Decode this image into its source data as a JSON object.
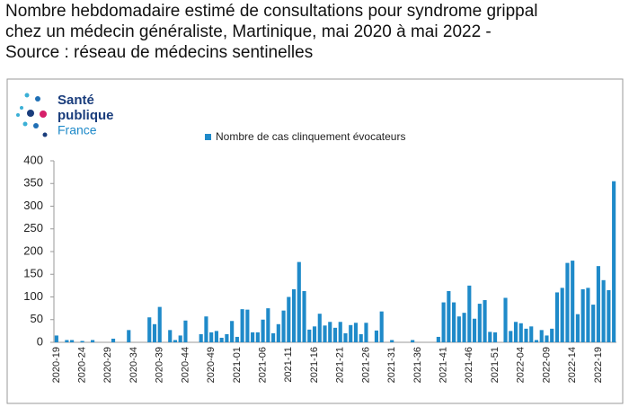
{
  "chart_data": {
    "type": "bar",
    "title": [
      "Nombre hebdomadaire estimé de consultations pour syndrome grippal",
      "chez un médecin généraliste, Martinique, mai 2020 à mai 2022 -",
      "Source : réseau de médecins sentinelles"
    ],
    "logo": [
      "Santé",
      "publique",
      "France"
    ],
    "categories": [
      "2020-19",
      null,
      null,
      null,
      null,
      "2020-24",
      null,
      null,
      null,
      null,
      "2020-29",
      null,
      null,
      null,
      null,
      "2020-34",
      null,
      null,
      null,
      null,
      "2020-39",
      null,
      null,
      null,
      null,
      "2020-44",
      null,
      null,
      null,
      null,
      "2020-49",
      null,
      null,
      null,
      null,
      "2021-01",
      null,
      null,
      null,
      null,
      "2021-06",
      null,
      null,
      null,
      null,
      "2021-11",
      null,
      null,
      null,
      null,
      "2021-16",
      null,
      null,
      null,
      null,
      "2021-21",
      null,
      null,
      null,
      null,
      "2021-26",
      null,
      null,
      null,
      null,
      "2021-31",
      null,
      null,
      null,
      null,
      "2021-36",
      null,
      null,
      null,
      null,
      "2021-41",
      null,
      null,
      null,
      null,
      "2021-46",
      null,
      null,
      null,
      null,
      "2021-51",
      null,
      null,
      null,
      null,
      "2022-04",
      null,
      null,
      null,
      null,
      "2022-09",
      null,
      null,
      null,
      null,
      "2022-14",
      null,
      null,
      null,
      null,
      "2022-19",
      null,
      null,
      null
    ],
    "series": [
      {
        "name": "Nombre de cas clinquement évocateurs",
        "color": "#1f8ac9",
        "values": [
          15,
          0,
          5,
          5,
          0,
          3,
          0,
          5,
          0,
          0,
          0,
          8,
          0,
          0,
          27,
          0,
          0,
          0,
          55,
          40,
          78,
          0,
          27,
          5,
          15,
          48,
          0,
          0,
          18,
          57,
          22,
          25,
          10,
          18,
          47,
          12,
          73,
          72,
          22,
          22,
          50,
          75,
          20,
          40,
          70,
          100,
          117,
          177,
          113,
          28,
          35,
          63,
          37,
          45,
          32,
          45,
          20,
          38,
          43,
          18,
          43,
          0,
          26,
          68,
          0,
          5,
          0,
          0,
          0,
          5,
          0,
          0,
          0,
          0,
          12,
          88,
          113,
          88,
          57,
          65,
          125,
          52,
          85,
          93,
          23,
          22,
          0,
          98,
          25,
          45,
          42,
          30,
          35,
          5,
          27,
          15,
          30,
          110,
          120,
          175,
          180,
          62,
          117,
          120,
          83,
          168,
          137,
          115,
          355
        ]
      }
    ],
    "ylim": [
      0,
      400
    ],
    "yticks": [
      0,
      50,
      100,
      150,
      200,
      250,
      300,
      350,
      400
    ],
    "legend": "top"
  }
}
